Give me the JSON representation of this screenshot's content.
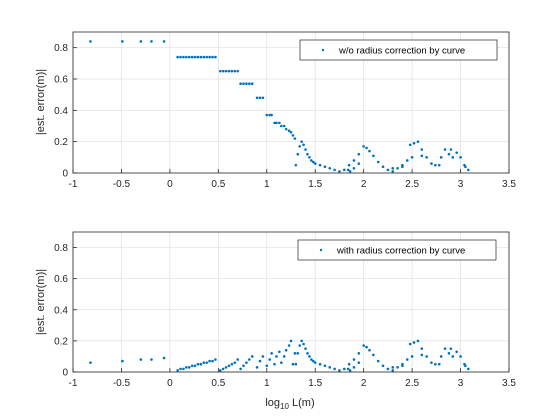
{
  "chart_data": [
    {
      "type": "scatter",
      "xlim": [
        -1,
        3.5
      ],
      "ylim": [
        0,
        0.9
      ],
      "xticks": [
        "-1",
        "-0.5",
        "0",
        "0.5",
        "1",
        "1.5",
        "2",
        "2.5",
        "3",
        "3.5"
      ],
      "yticks": [
        "0",
        "0.2",
        "0.4",
        "0.6",
        "0.8"
      ],
      "xlabel": "",
      "ylabel": "|est. error(m)|",
      "grid": true,
      "legend_position": "top-right",
      "color": "#0072BD",
      "series": [
        {
          "name": "w/o radius correction by curve",
          "x": [
            -0.82,
            -0.49,
            -0.3,
            -0.19,
            -0.06,
            0.08,
            0.11,
            0.14,
            0.17,
            0.2,
            0.23,
            0.26,
            0.29,
            0.32,
            0.35,
            0.38,
            0.41,
            0.44,
            0.47,
            0.52,
            0.55,
            0.58,
            0.61,
            0.64,
            0.67,
            0.7,
            0.73,
            0.76,
            0.79,
            0.82,
            0.85,
            0.9,
            0.93,
            0.96,
            1.0,
            1.03,
            1.05,
            1.08,
            1.1,
            1.13,
            1.15,
            1.18,
            1.2,
            1.23,
            1.25,
            1.27,
            1.29,
            1.3,
            1.32,
            1.34,
            1.36,
            1.38,
            1.4,
            1.42,
            1.44,
            1.46,
            1.48,
            1.5,
            1.55,
            1.6,
            1.65,
            1.7,
            1.75,
            1.8,
            1.85,
            1.9,
            1.95,
            2.0,
            2.03,
            2.06,
            2.1,
            2.15,
            2.2,
            2.25,
            2.3,
            2.35,
            2.4,
            2.45,
            2.48,
            2.52,
            2.56,
            2.6,
            2.65,
            2.7,
            2.74,
            2.78,
            2.8,
            2.84,
            2.88,
            2.92,
            2.96,
            3.0,
            3.04,
            3.08,
            1.84,
            1.86,
            1.9,
            1.95,
            2.3,
            2.4,
            2.5,
            2.6,
            2.9,
            3.05
          ],
          "y": [
            0.84,
            0.84,
            0.84,
            0.84,
            0.84,
            0.74,
            0.74,
            0.74,
            0.74,
            0.74,
            0.74,
            0.74,
            0.74,
            0.74,
            0.74,
            0.74,
            0.74,
            0.74,
            0.74,
            0.65,
            0.65,
            0.65,
            0.65,
            0.65,
            0.65,
            0.65,
            0.57,
            0.57,
            0.57,
            0.57,
            0.57,
            0.48,
            0.48,
            0.48,
            0.37,
            0.37,
            0.37,
            0.32,
            0.32,
            0.32,
            0.3,
            0.3,
            0.28,
            0.27,
            0.26,
            0.24,
            0.22,
            0.05,
            0.12,
            0.17,
            0.2,
            0.18,
            0.15,
            0.12,
            0.1,
            0.08,
            0.07,
            0.06,
            0.05,
            0.04,
            0.03,
            0.02,
            0.01,
            0.02,
            0.05,
            0.08,
            0.12,
            0.17,
            0.16,
            0.14,
            0.11,
            0.07,
            0.04,
            0.02,
            0.01,
            0.03,
            0.05,
            0.08,
            0.18,
            0.19,
            0.2,
            0.15,
            0.1,
            0.06,
            0.05,
            0.05,
            0.1,
            0.15,
            0.12,
            0.1,
            0.13,
            0.1,
            0.05,
            0.02,
            0.02,
            0.01,
            0.03,
            0.06,
            0.03,
            0.04,
            0.1,
            0.11,
            0.15,
            0.04
          ]
        }
      ]
    },
    {
      "type": "scatter",
      "xlim": [
        -1,
        3.5
      ],
      "ylim": [
        0,
        0.9
      ],
      "xticks": [
        "-1",
        "-0.5",
        "0",
        "0.5",
        "1",
        "1.5",
        "2",
        "2.5",
        "3",
        "3.5"
      ],
      "yticks": [
        "0",
        "0.2",
        "0.4",
        "0.6",
        "0.8"
      ],
      "xlabel": "log10 L(m)",
      "ylabel": "|est. error(m)|",
      "grid": true,
      "legend_position": "top-right",
      "color": "#0072BD",
      "series": [
        {
          "name": "with radius correction by curve",
          "x": [
            -0.82,
            -0.49,
            -0.3,
            -0.19,
            -0.06,
            0.08,
            0.11,
            0.14,
            0.17,
            0.2,
            0.23,
            0.26,
            0.29,
            0.32,
            0.35,
            0.38,
            0.41,
            0.44,
            0.47,
            0.52,
            0.55,
            0.58,
            0.61,
            0.64,
            0.67,
            0.7,
            0.73,
            0.76,
            0.79,
            0.82,
            0.85,
            0.9,
            0.93,
            0.96,
            1.0,
            1.03,
            1.05,
            1.08,
            1.1,
            1.13,
            1.15,
            1.18,
            1.2,
            1.23,
            1.25,
            1.27,
            1.29,
            1.3,
            1.32,
            1.34,
            1.36,
            1.38,
            1.4,
            1.42,
            1.44,
            1.46,
            1.48,
            1.5,
            1.55,
            1.6,
            1.65,
            1.7,
            1.75,
            1.8,
            1.85,
            1.9,
            1.95,
            2.0,
            2.03,
            2.06,
            2.1,
            2.15,
            2.2,
            2.25,
            2.3,
            2.35,
            2.4,
            2.45,
            2.48,
            2.52,
            2.56,
            2.6,
            2.65,
            2.7,
            2.74,
            2.78,
            2.8,
            2.84,
            2.88,
            2.92,
            2.96,
            3.0,
            3.04,
            3.08,
            1.84,
            1.86,
            1.9,
            1.95,
            2.3,
            2.4,
            2.5,
            2.6,
            2.9,
            3.05
          ],
          "y": [
            0.06,
            0.07,
            0.08,
            0.08,
            0.09,
            0.01,
            0.02,
            0.02,
            0.03,
            0.03,
            0.04,
            0.04,
            0.05,
            0.05,
            0.06,
            0.06,
            0.07,
            0.07,
            0.08,
            0.01,
            0.02,
            0.03,
            0.04,
            0.05,
            0.06,
            0.08,
            0.02,
            0.04,
            0.06,
            0.08,
            0.1,
            0.03,
            0.07,
            0.1,
            0.04,
            0.08,
            0.12,
            0.05,
            0.1,
            0.13,
            0.06,
            0.1,
            0.14,
            0.17,
            0.2,
            0.05,
            0.12,
            0.05,
            0.12,
            0.17,
            0.2,
            0.18,
            0.15,
            0.12,
            0.1,
            0.08,
            0.07,
            0.06,
            0.05,
            0.04,
            0.03,
            0.02,
            0.01,
            0.02,
            0.05,
            0.08,
            0.12,
            0.17,
            0.16,
            0.14,
            0.11,
            0.07,
            0.04,
            0.02,
            0.01,
            0.03,
            0.05,
            0.08,
            0.18,
            0.19,
            0.2,
            0.15,
            0.1,
            0.06,
            0.05,
            0.05,
            0.1,
            0.15,
            0.12,
            0.1,
            0.13,
            0.1,
            0.05,
            0.02,
            0.02,
            0.01,
            0.03,
            0.06,
            0.03,
            0.04,
            0.1,
            0.11,
            0.15,
            0.04
          ]
        }
      ]
    }
  ],
  "labels": {
    "top_ylabel": "|est. error(m)|",
    "bottom_ylabel": "|est. error(m)|",
    "xlabel_base": "log",
    "xlabel_sub": "10",
    "xlabel_rest": " L(m)",
    "top_legend": "w/o radius correction by curve",
    "bottom_legend": "with radius correction by curve"
  }
}
